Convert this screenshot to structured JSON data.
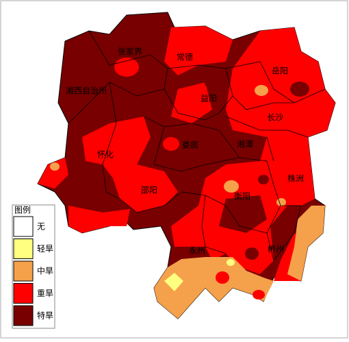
{
  "legend": {
    "title": "图例",
    "items": [
      {
        "label": "无",
        "color": "#ffffff"
      },
      {
        "label": "轻旱",
        "color": "#ffff80"
      },
      {
        "label": "中旱",
        "color": "#f5a04a"
      },
      {
        "label": "重旱",
        "color": "#ff0000"
      },
      {
        "label": "特旱",
        "color": "#780000"
      }
    ]
  },
  "cities": [
    {
      "label": "张家界"
    },
    {
      "label": "常德"
    },
    {
      "label": "岳阳"
    },
    {
      "label": "湘西自治州"
    },
    {
      "label": "益阳"
    },
    {
      "label": "长沙"
    },
    {
      "label": "怀化"
    },
    {
      "label": "娄底"
    },
    {
      "label": "湘潭"
    },
    {
      "label": "株洲"
    },
    {
      "label": "邵阳"
    },
    {
      "label": "衡阳"
    },
    {
      "label": "永州"
    },
    {
      "label": "郴州"
    }
  ]
}
